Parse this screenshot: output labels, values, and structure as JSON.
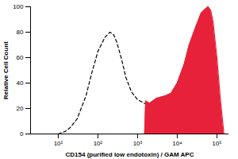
{
  "chart_data": {
    "type": "histogram_overlay",
    "x_label": "CD154 (purified low endotoxin) / GAM APC",
    "y_label": "Relative Cell Count",
    "log": "x",
    "x": [
      10,
      15,
      20,
      30,
      50,
      70,
      100,
      150,
      200,
      250,
      300,
      400,
      500,
      700,
      1000,
      1500,
      1600,
      2000,
      3000,
      5000,
      7000,
      10000,
      15000,
      20000,
      30000,
      40000,
      50000,
      60000,
      70000,
      80000,
      100000,
      120000,
      150000
    ],
    "series": [
      {
        "type": "line",
        "color": "#000000",
        "line_style": "dashed",
        "values": [
          0,
          2,
          5,
          12,
          30,
          48,
          65,
          76,
          80,
          78,
          72,
          58,
          45,
          33,
          27,
          24,
          24,
          20,
          10,
          0,
          null,
          null,
          null,
          null,
          null,
          null,
          null,
          null,
          null,
          null,
          null,
          null,
          null
        ]
      },
      {
        "type": "area",
        "color": "#e8213a",
        "values": [
          null,
          null,
          null,
          null,
          null,
          null,
          null,
          null,
          null,
          null,
          null,
          null,
          null,
          null,
          null,
          0,
          26,
          24,
          28,
          30,
          32,
          40,
          55,
          70,
          85,
          95,
          98,
          100,
          97,
          88,
          60,
          30,
          0
        ]
      }
    ],
    "xlim": [
      2,
      200000
    ],
    "xticks": [
      {
        "value": 10,
        "label": "10¹"
      },
      {
        "value": 100,
        "label": "10²"
      },
      {
        "value": 1000,
        "label": "10³"
      },
      {
        "value": 10000,
        "label": "10⁴"
      },
      {
        "value": 100000,
        "label": "10⁵"
      }
    ],
    "ylim": [
      0,
      100
    ],
    "yticks": [
      0,
      20,
      40,
      60,
      80,
      100
    ],
    "grid": false
  }
}
